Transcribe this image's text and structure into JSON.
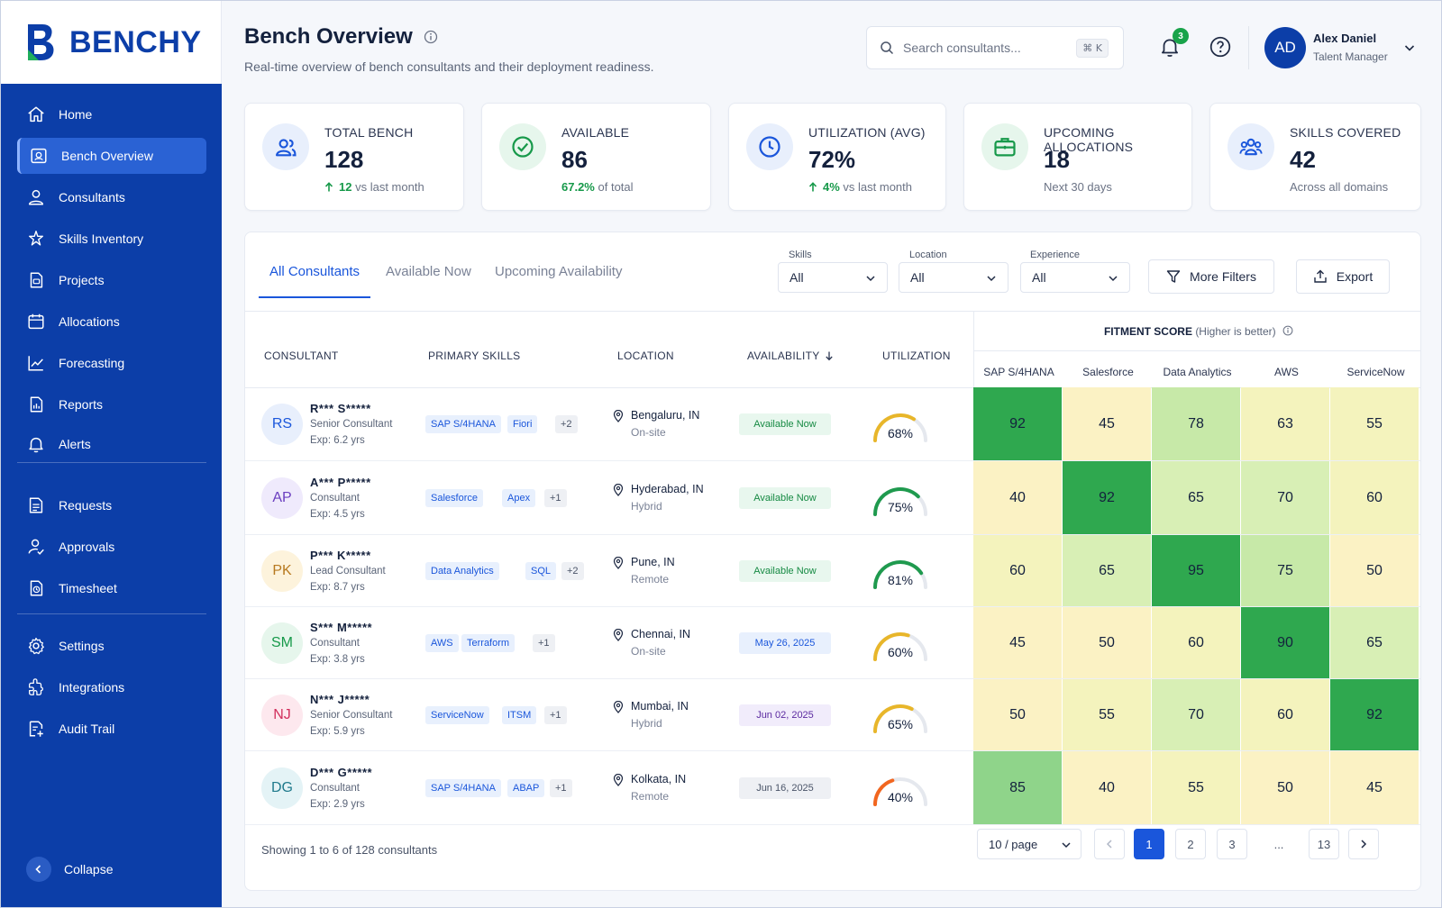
{
  "brand": {
    "name": "BENCHY"
  },
  "sidebar": {
    "items": [
      {
        "label": "Home",
        "icon": "home-icon"
      },
      {
        "label": "Bench Overview",
        "icon": "bench-icon",
        "active": true
      },
      {
        "label": "Consultants",
        "icon": "user-icon"
      },
      {
        "label": "Skills Inventory",
        "icon": "skills-icon"
      },
      {
        "label": "Projects",
        "icon": "projects-icon"
      },
      {
        "label": "Allocations",
        "icon": "calendar-icon"
      },
      {
        "label": "Forecasting",
        "icon": "chart-line-icon"
      },
      {
        "label": "Reports",
        "icon": "report-icon"
      },
      {
        "label": "Alerts",
        "icon": "bell-icon"
      },
      {
        "label": "Requests",
        "icon": "request-icon"
      },
      {
        "label": "Approvals",
        "icon": "approval-icon"
      },
      {
        "label": "Timesheet",
        "icon": "timesheet-icon"
      },
      {
        "label": "Settings",
        "icon": "gear-icon"
      },
      {
        "label": "Integrations",
        "icon": "integration-icon"
      },
      {
        "label": "Audit Trail",
        "icon": "audit-icon"
      }
    ],
    "collapse_label": "Collapse"
  },
  "header": {
    "title": "Bench Overview",
    "subtitle": "Real-time overview of bench consultants and their deployment readiness.",
    "search_placeholder": "Search consultants...",
    "search_shortcut": "⌘ K",
    "notification_count": "3",
    "user": {
      "initials": "AD",
      "name": "Alex Daniel",
      "role": "Talent Manager"
    }
  },
  "kpis": [
    {
      "label": "TOTAL BENCH",
      "value": "128",
      "note_value": "12",
      "note_text": "vs last month",
      "trend": "up",
      "icon": "users-icon"
    },
    {
      "label": "AVAILABLE",
      "value": "86",
      "note_value": "67.2%",
      "note_text": "of total",
      "trend": "none",
      "icon": "check-circle-icon"
    },
    {
      "label": "UTILIZATION (AVG)",
      "value": "72%",
      "note_value": "4%",
      "note_text": "vs last month",
      "trend": "up",
      "icon": "clock-icon"
    },
    {
      "label": "UPCOMING ALLOCATIONS",
      "value": "18",
      "note_value": "",
      "note_text": "Next 30 days",
      "trend": "none",
      "icon": "briefcase-icon"
    },
    {
      "label": "SKILLS COVERED",
      "value": "42",
      "note_value": "",
      "note_text": "Across all domains",
      "trend": "none",
      "icon": "team-icon"
    }
  ],
  "tabs": [
    "All Consultants",
    "Available Now",
    "Upcoming Availability"
  ],
  "filters": {
    "skills": {
      "label": "Skills",
      "value": "All"
    },
    "location": {
      "label": "Location",
      "value": "All"
    },
    "experience": {
      "label": "Experience",
      "value": "All"
    },
    "more_filters": "More Filters",
    "export": "Export"
  },
  "table": {
    "headers": {
      "consultant": "CONSULTANT",
      "skills": "PRIMARY SKILLS",
      "location": "LOCATION",
      "availability": "AVAILABILITY",
      "utilization": "UTILIZATION"
    },
    "fitment_title": "FITMENT SCORE",
    "fitment_sub": "(Higher is better)",
    "fitment_columns": [
      "SAP S/4HANA",
      "Salesforce",
      "Data Analytics",
      "AWS",
      "ServiceNow"
    ],
    "rows": [
      {
        "initials": "RS",
        "name": "R*** S*****",
        "role": "Senior Consultant",
        "exp": "Exp: 6.2 yrs",
        "skills": [
          "SAP S/4HANA",
          "Fiori"
        ],
        "more": "+2",
        "city": "Bengaluru, IN",
        "mode": "On-site",
        "availability": "Available Now",
        "status": "now",
        "utilization": 68,
        "util_label": "68%",
        "scores": [
          92,
          45,
          78,
          63,
          55
        ]
      },
      {
        "initials": "AP",
        "name": "A*** P*****",
        "role": "Consultant",
        "exp": "Exp: 4.5 yrs",
        "skills": [
          "Salesforce",
          "Apex"
        ],
        "more": "+1",
        "city": "Hyderabad, IN",
        "mode": "Hybrid",
        "availability": "Available Now",
        "status": "now",
        "utilization": 75,
        "util_label": "75%",
        "scores": [
          40,
          92,
          65,
          70,
          60
        ]
      },
      {
        "initials": "PK",
        "name": "P*** K*****",
        "role": "Lead Consultant",
        "exp": "Exp: 8.7 yrs",
        "skills": [
          "Data Analytics",
          "SQL"
        ],
        "more": "+2",
        "city": "Pune, IN",
        "mode": "Remote",
        "availability": "Available Now",
        "status": "now",
        "utilization": 81,
        "util_label": "81%",
        "scores": [
          60,
          65,
          95,
          75,
          50
        ]
      },
      {
        "initials": "SM",
        "name": "S*** M*****",
        "role": "Consultant",
        "exp": "Exp: 3.8 yrs",
        "skills": [
          "AWS",
          "Terraform"
        ],
        "more": "+1",
        "city": "Chennai, IN",
        "mode": "On-site",
        "availability": "May 26, 2025",
        "status": "blue",
        "utilization": 60,
        "util_label": "60%",
        "scores": [
          45,
          50,
          60,
          90,
          65
        ]
      },
      {
        "initials": "NJ",
        "name": "N*** J*****",
        "role": "Senior Consultant",
        "exp": "Exp: 5.9 yrs",
        "skills": [
          "ServiceNow",
          "ITSM"
        ],
        "more": "+1",
        "city": "Mumbai, IN",
        "mode": "Hybrid",
        "availability": "Jun 02, 2025",
        "status": "purple",
        "utilization": 65,
        "util_label": "65%",
        "scores": [
          50,
          55,
          70,
          60,
          92
        ]
      },
      {
        "initials": "DG",
        "name": "D*** G*****",
        "role": "Consultant",
        "exp": "Exp: 2.9 yrs",
        "skills": [
          "SAP S/4HANA",
          "ABAP"
        ],
        "more": "+1",
        "city": "Kolkata, IN",
        "mode": "Remote",
        "availability": "Jun 16, 2025",
        "status": "gray",
        "utilization": 40,
        "util_label": "40%",
        "scores": [
          85,
          40,
          55,
          50,
          45
        ]
      }
    ]
  },
  "pagination": {
    "info": "Showing 1 to 6 of 128 consultants",
    "page_size": "10 / page",
    "pages": [
      "1",
      "2",
      "3",
      "...",
      "13"
    ],
    "current": "1"
  },
  "colors": {
    "brand": "#0c3ea8",
    "accent": "#1a56db",
    "positive": "#17994a"
  }
}
